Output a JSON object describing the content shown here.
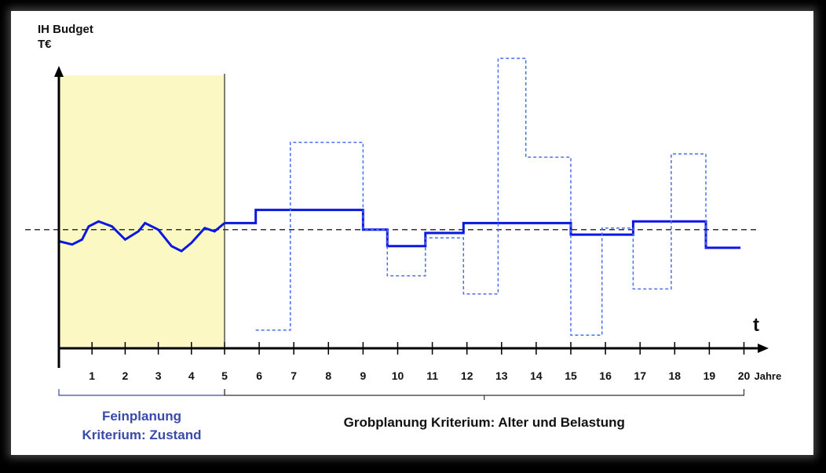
{
  "chart_data": {
    "type": "line",
    "ylabel_line1": "IH Budget",
    "ylabel_line2": "T€",
    "t_label": "t",
    "x_unit": "Jahre",
    "ticks": [
      "1",
      "2",
      "3",
      "4",
      "5",
      "6",
      "7",
      "8",
      "9",
      "10",
      "11",
      "12",
      "13",
      "14",
      "15",
      "16",
      "17",
      "18",
      "19",
      "20"
    ],
    "feinplanung": {
      "line1": "Feinplanung",
      "line2": "Kriterium: Zustand",
      "x_range": [
        0,
        5
      ]
    },
    "grobplanung": {
      "label": "Grobplanung Kriterium: Alter und Belastung",
      "x_range": [
        5,
        20
      ]
    },
    "reference_level": 72,
    "series": [
      {
        "style": "solid",
        "points": [
          [
            0,
            65
          ],
          [
            0.4,
            63
          ],
          [
            0.7,
            66
          ],
          [
            0.9,
            74
          ],
          [
            1.2,
            77
          ],
          [
            1.6,
            74
          ],
          [
            2,
            66
          ],
          [
            2.4,
            71
          ],
          [
            2.6,
            76
          ],
          [
            3,
            72
          ],
          [
            3.4,
            62
          ],
          [
            3.7,
            59
          ],
          [
            4,
            64
          ],
          [
            4.4,
            73
          ],
          [
            4.7,
            71
          ],
          [
            5,
            76
          ]
        ]
      },
      {
        "style": "solid",
        "steps": [
          [
            5,
            76
          ],
          [
            5.9,
            84
          ],
          [
            9,
            72
          ],
          [
            9.7,
            62
          ],
          [
            10.8,
            70
          ],
          [
            11.9,
            76
          ],
          [
            15,
            69
          ],
          [
            16.8,
            77
          ],
          [
            18.9,
            61
          ],
          [
            19.9,
            61
          ]
        ]
      },
      {
        "style": "dashed",
        "steps": [
          [
            5.9,
            11
          ],
          [
            6.9,
            125
          ],
          [
            9,
            72
          ],
          [
            9.7,
            44
          ],
          [
            10.8,
            67
          ],
          [
            11.9,
            33
          ],
          [
            12.9,
            176
          ],
          [
            13.7,
            116
          ],
          [
            15,
            8
          ],
          [
            15.9,
            73
          ],
          [
            16.8,
            36
          ],
          [
            17.9,
            118
          ],
          [
            18.9,
            61
          ]
        ]
      }
    ],
    "colors": {
      "feinplanung_bg": "#fbf8c4",
      "series_line": "#0a17e0",
      "dashed_line": "#4a6ef0",
      "feinplanung_text": "#3a4aa8",
      "axis": "#000000"
    }
  }
}
